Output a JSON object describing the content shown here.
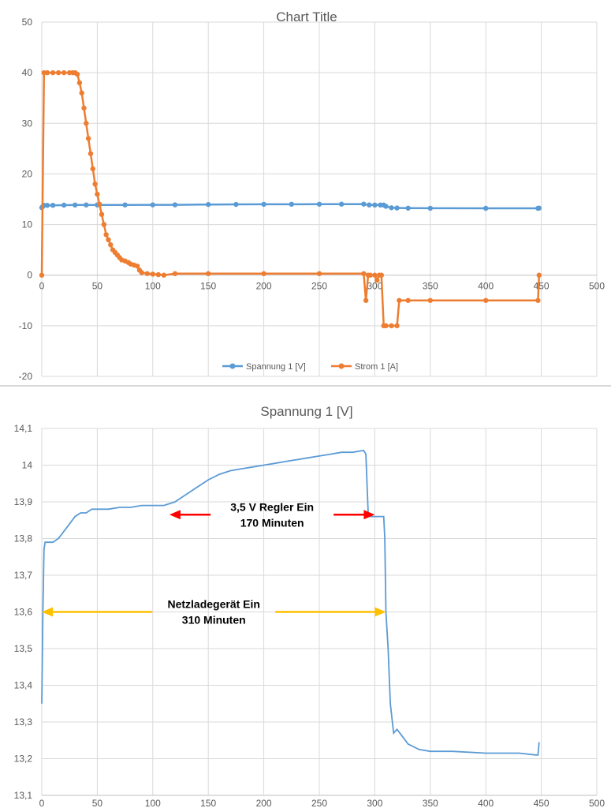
{
  "chart_data": [
    {
      "type": "scatter",
      "title": "Chart Title",
      "xlim": [
        0,
        500
      ],
      "ylim": [
        -20,
        50
      ],
      "x_ticks": [
        0,
        50,
        100,
        150,
        200,
        250,
        300,
        350,
        400,
        450,
        500
      ],
      "y_ticks": [
        -20,
        -10,
        0,
        10,
        20,
        30,
        40,
        50
      ],
      "grid": true,
      "legend_position": "bottom",
      "series": [
        {
          "name": "Spannung 1 [V]",
          "color": "#5b9bd5",
          "points": [
            [
              0,
              13.35
            ],
            [
              1,
              13.6
            ],
            [
              2,
              13.79
            ],
            [
              5,
              13.79
            ],
            [
              10,
              13.8
            ],
            [
              20,
              13.83
            ],
            [
              30,
              13.86
            ],
            [
              40,
              13.87
            ],
            [
              50,
              13.88
            ],
            [
              75,
              13.88
            ],
            [
              100,
              13.89
            ],
            [
              120,
              13.9
            ],
            [
              150,
              13.96
            ],
            [
              175,
              13.98
            ],
            [
              200,
              14.0
            ],
            [
              225,
              14.01
            ],
            [
              250,
              14.02
            ],
            [
              270,
              14.03
            ],
            [
              290,
              14.04
            ],
            [
              295,
              13.87
            ],
            [
              300,
              13.86
            ],
            [
              305,
              13.86
            ],
            [
              308,
              13.85
            ],
            [
              310,
              13.6
            ],
            [
              315,
              13.32
            ],
            [
              320,
              13.27
            ],
            [
              330,
              13.24
            ],
            [
              350,
              13.22
            ],
            [
              400,
              13.21
            ],
            [
              447,
              13.21
            ],
            [
              448,
              13.25
            ]
          ]
        },
        {
          "name": "Strom 1 [A]",
          "color": "#ed7d31",
          "points": [
            [
              0,
              0
            ],
            [
              2,
              40
            ],
            [
              5,
              40
            ],
            [
              10,
              40
            ],
            [
              15,
              40
            ],
            [
              20,
              40
            ],
            [
              25,
              40
            ],
            [
              28,
              40
            ],
            [
              30,
              40
            ],
            [
              32,
              39.7
            ],
            [
              34,
              38
            ],
            [
              36,
              36
            ],
            [
              38,
              33
            ],
            [
              40,
              30
            ],
            [
              42,
              27
            ],
            [
              44,
              24
            ],
            [
              46,
              21
            ],
            [
              48,
              18
            ],
            [
              50,
              16
            ],
            [
              52,
              14
            ],
            [
              54,
              12
            ],
            [
              56,
              10
            ],
            [
              58,
              8
            ],
            [
              60,
              7
            ],
            [
              62,
              6
            ],
            [
              64,
              5
            ],
            [
              66,
              4.5
            ],
            [
              68,
              4
            ],
            [
              70,
              3.5
            ],
            [
              72,
              3
            ],
            [
              75,
              2.8
            ],
            [
              78,
              2.5
            ],
            [
              80,
              2.2
            ],
            [
              83,
              2
            ],
            [
              86,
              1.8
            ],
            [
              88,
              1
            ],
            [
              90,
              0.5
            ],
            [
              95,
              0.3
            ],
            [
              100,
              0.2
            ],
            [
              105,
              0.1
            ],
            [
              110,
              0
            ],
            [
              120,
              0.3
            ],
            [
              150,
              0.3
            ],
            [
              200,
              0.3
            ],
            [
              250,
              0.3
            ],
            [
              290,
              0.3
            ],
            [
              292,
              -5
            ],
            [
              294,
              0
            ],
            [
              296,
              0
            ],
            [
              300,
              0
            ],
            [
              302,
              -1
            ],
            [
              304,
              0
            ],
            [
              306,
              0
            ],
            [
              308,
              -10
            ],
            [
              310,
              -10
            ],
            [
              315,
              -10
            ],
            [
              320,
              -10
            ],
            [
              322,
              -5
            ],
            [
              330,
              -5
            ],
            [
              350,
              -5
            ],
            [
              400,
              -5
            ],
            [
              447,
              -5
            ],
            [
              448,
              0
            ]
          ]
        }
      ]
    },
    {
      "type": "line",
      "title": "Spannung 1 [V]",
      "xlim": [
        0,
        500
      ],
      "ylim": [
        13.1,
        14.1
      ],
      "x_ticks": [
        0,
        50,
        100,
        150,
        200,
        250,
        300,
        350,
        400,
        450,
        500
      ],
      "y_ticks": [
        "13,1",
        "13,2",
        "13,3",
        "13,4",
        "13,5",
        "13,6",
        "13,7",
        "13,8",
        "13,9",
        "14",
        "14,1"
      ],
      "grid": true,
      "series": [
        {
          "color": "#5b9bd5",
          "points": [
            [
              0,
              13.35
            ],
            [
              1,
              13.6
            ],
            [
              2,
              13.77
            ],
            [
              3,
              13.79
            ],
            [
              5,
              13.79
            ],
            [
              10,
              13.79
            ],
            [
              15,
              13.8
            ],
            [
              20,
              13.82
            ],
            [
              25,
              13.84
            ],
            [
              30,
              13.86
            ],
            [
              35,
              13.87
            ],
            [
              40,
              13.87
            ],
            [
              45,
              13.88
            ],
            [
              50,
              13.88
            ],
            [
              60,
              13.88
            ],
            [
              70,
              13.885
            ],
            [
              80,
              13.885
            ],
            [
              90,
              13.89
            ],
            [
              100,
              13.89
            ],
            [
              110,
              13.89
            ],
            [
              120,
              13.9
            ],
            [
              130,
              13.92
            ],
            [
              140,
              13.94
            ],
            [
              150,
              13.96
            ],
            [
              160,
              13.975
            ],
            [
              170,
              13.985
            ],
            [
              180,
              13.99
            ],
            [
              190,
              13.995
            ],
            [
              200,
              14.0
            ],
            [
              210,
              14.005
            ],
            [
              220,
              14.01
            ],
            [
              230,
              14.015
            ],
            [
              240,
              14.02
            ],
            [
              250,
              14.025
            ],
            [
              260,
              14.03
            ],
            [
              270,
              14.035
            ],
            [
              280,
              14.035
            ],
            [
              290,
              14.04
            ],
            [
              292,
              14.03
            ],
            [
              293,
              13.95
            ],
            [
              294,
              13.87
            ],
            [
              296,
              13.86
            ],
            [
              300,
              13.86
            ],
            [
              305,
              13.86
            ],
            [
              308,
              13.86
            ],
            [
              309,
              13.8
            ],
            [
              310,
              13.6
            ],
            [
              312,
              13.5
            ],
            [
              314,
              13.35
            ],
            [
              317,
              13.27
            ],
            [
              320,
              13.28
            ],
            [
              325,
              13.26
            ],
            [
              330,
              13.24
            ],
            [
              340,
              13.225
            ],
            [
              350,
              13.22
            ],
            [
              370,
              13.22
            ],
            [
              400,
              13.215
            ],
            [
              430,
              13.215
            ],
            [
              445,
              13.21
            ],
            [
              447,
              13.21
            ],
            [
              448,
              13.245
            ]
          ]
        }
      ],
      "annotations": [
        {
          "line1": "3,5 V Regler Ein",
          "line2": "170 Minuten",
          "x_start": 115,
          "x_end": 300,
          "y": 13.865,
          "color": "#ff0000"
        },
        {
          "line1": "Netzladegerät Ein",
          "line2": "310 Minuten",
          "x_start": 0,
          "x_end": 310,
          "y": 13.6,
          "color": "#ffc000"
        }
      ]
    }
  ]
}
